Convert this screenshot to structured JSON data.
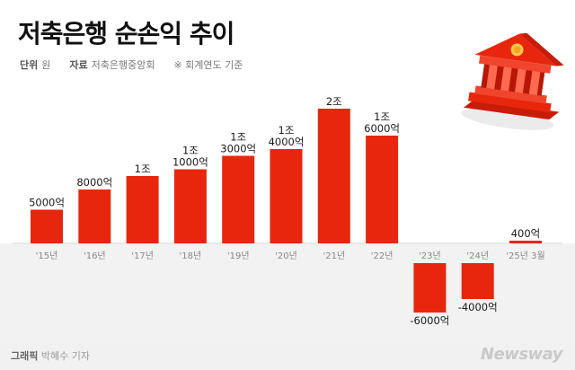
{
  "title": "저축은행 순손익 추이",
  "meta": {
    "unit_label": "단위",
    "unit_value": "원",
    "source_label": "자료",
    "source_value": "저축은행중앙회",
    "note": "※ 회계연도 기준"
  },
  "footer": {
    "credit_label": "그래픽",
    "credit_name": "박혜수 기자",
    "brand": "Newsway"
  },
  "colors": {
    "bar": "#e8260e",
    "axis": "#d9d9d9",
    "neg_area": "#f2f2f2"
  },
  "chart_data": {
    "type": "bar",
    "title": "저축은행 순손익 추이",
    "xlabel": "",
    "ylabel": "",
    "unit": "원",
    "categories": [
      "'15년",
      "'16년",
      "'17년",
      "'18년",
      "'19년",
      "'20년",
      "'21년",
      "'22년",
      "'23년",
      "'24년",
      "'25년 3월"
    ],
    "values": [
      500000000000,
      800000000000,
      1000000000000,
      1100000000000,
      1300000000000,
      1400000000000,
      2000000000000,
      1600000000000,
      -600000000000,
      -400000000000,
      40000000000
    ],
    "data_labels": [
      [
        "5000억"
      ],
      [
        "8000억"
      ],
      [
        "1조"
      ],
      [
        "1조",
        "1000억"
      ],
      [
        "1조",
        "3000억"
      ],
      [
        "1조",
        "4000억"
      ],
      [
        "2조"
      ],
      [
        "1조",
        "6000억"
      ],
      [
        "-6000억"
      ],
      [
        "-4000억"
      ],
      [
        "400억"
      ]
    ],
    "ylim": [
      -750000000000,
      2000000000000
    ],
    "grid": false,
    "legend": "none"
  }
}
